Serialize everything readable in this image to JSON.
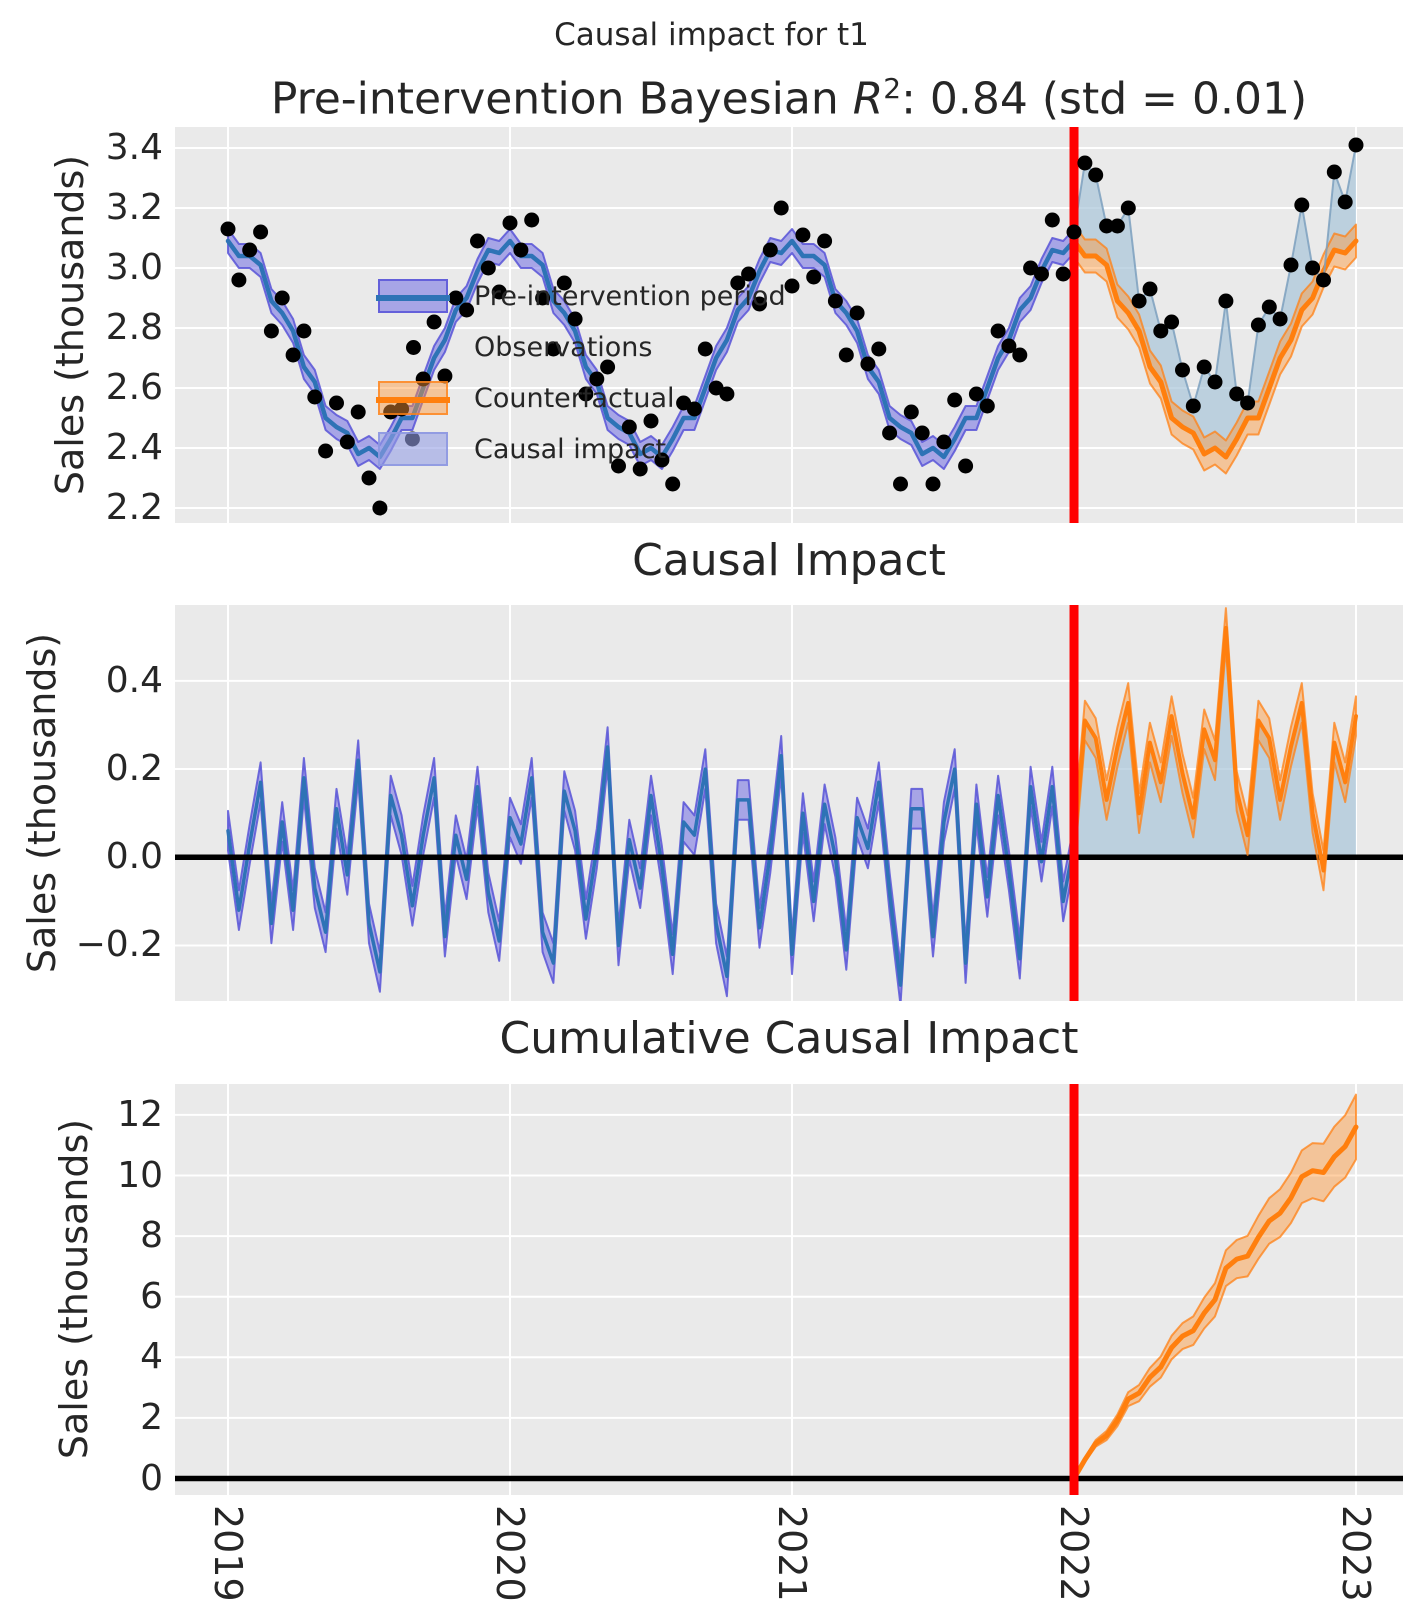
{
  "figure": {
    "suptitle": "Causal impact for t1",
    "background": "#ffffff",
    "panel_bg": "#eaeaea",
    "grid_color": "#ffffff",
    "text_color": "#262626"
  },
  "palette": {
    "fit_line": "#2e73b6",
    "fit_band_fill": "rgba(100,95,225,0.50)",
    "fit_band_edge": "rgba(88,84,215,0.85)",
    "counterfactual_line": "#ff7f0e",
    "counterfactual_band_fill": "rgba(255,150,55,0.45)",
    "counterfactual_band_edge": "rgba(255,128,20,0.75)",
    "causal_fill": "rgba(168,196,216,0.70)",
    "observation_dot": "#000000",
    "observation_line": "rgba(125,160,190,0.85)",
    "intervention_line": "#ff0000",
    "zero_line": "#000000",
    "legend_impact_patch_fill": "rgba(148,158,228,0.60)",
    "legend_impact_patch_edge": "rgba(140,150,225,0.85)"
  },
  "panels": {
    "top": {
      "title_prefix": "Pre-intervention Bayesian ",
      "title_r": "R",
      "title_sup": "2",
      "title_suffix": ": 0.84 (std = 0.01)",
      "ylabel": "Sales (thousands)",
      "legend": {
        "items": [
          {
            "label": "Pre-intervention period",
            "marker": "blue-band-with-line"
          },
          {
            "label": "Observations",
            "marker": "black-dot"
          },
          {
            "label": "Counterfactual",
            "marker": "orange-band-with-line"
          },
          {
            "label": "Causal impact",
            "marker": "light-blue-patch"
          }
        ]
      }
    },
    "middle": {
      "title": "Causal Impact",
      "ylabel": "Sales (thousands)"
    },
    "bottom": {
      "title": "Cumulative Causal Impact",
      "ylabel": "Sales (thousands)"
    }
  },
  "chart_data": [
    {
      "type": "line",
      "title": "Pre-intervention Bayesian R^2: 0.84 (std = 0.01)",
      "ylabel": "Sales (thousands)",
      "xlim": [
        2018.81,
        2023.17
      ],
      "ylim": [
        2.15,
        3.47
      ],
      "xticks": [
        2019,
        2020,
        2021,
        2022,
        2023
      ],
      "xtick_labels": [
        "2019",
        "2020",
        "2021",
        "2022",
        "2023"
      ],
      "yticks": [
        2.2,
        2.4,
        2.6,
        2.8,
        3.0,
        3.2,
        3.4
      ],
      "ytick_labels": [
        "2.2",
        "2.4",
        "2.6",
        "2.8",
        "3.0",
        "3.2",
        "3.4"
      ],
      "grid": true,
      "legend_position": "upper left",
      "intervention_x": 2022,
      "x_start": 2019.0,
      "x_step": 0.038462,
      "series": [
        {
          "name": "Observations",
          "style": "black-scatter",
          "values": [
            3.13,
            2.96,
            3.06,
            3.12,
            2.79,
            2.9,
            2.71,
            2.79,
            2.57,
            2.39,
            2.55,
            2.42,
            2.52,
            2.3,
            2.2,
            2.52,
            2.53,
            2.43,
            2.63,
            2.82,
            2.64,
            2.9,
            2.86,
            3.09,
            3.0,
            2.92,
            3.15,
            3.06,
            3.16,
            2.9,
            2.73,
            2.95,
            2.83,
            2.58,
            2.63,
            2.67,
            2.34,
            2.47,
            2.33,
            2.49,
            2.36,
            2.28,
            2.55,
            2.53,
            2.73,
            2.6,
            2.58,
            2.95,
            2.98,
            2.88,
            3.06,
            3.2,
            2.94,
            3.11,
            2.97,
            3.09,
            2.89,
            2.71,
            2.85,
            2.68,
            2.73,
            2.45,
            2.28,
            2.52,
            2.45,
            2.28,
            2.42,
            2.56,
            2.34,
            2.58,
            2.54,
            2.79,
            2.74,
            2.71,
            3.0,
            2.98,
            3.16,
            2.98,
            3.12,
            3.35,
            3.31,
            3.14,
            3.14,
            3.2,
            2.89,
            2.93,
            2.79,
            2.82,
            2.66,
            2.54,
            2.67,
            2.62,
            2.89,
            2.58,
            2.55,
            2.81,
            2.87,
            2.83,
            3.01,
            3.21,
            3.0,
            2.96,
            3.32,
            3.22,
            3.41
          ]
        },
        {
          "name": "Pre-intervention period",
          "style": "blue-line-with-band",
          "band_halfwidth": 0.04,
          "x_start": 2019.0,
          "values": [
            3.09,
            3.04,
            3.04,
            3.01,
            2.89,
            2.85,
            2.79,
            2.67,
            2.62,
            2.5,
            2.47,
            2.45,
            2.38,
            2.4,
            2.37,
            2.43,
            2.5,
            2.5,
            2.6,
            2.7,
            2.76,
            2.86,
            2.9,
            2.99,
            3.06,
            3.05,
            3.09,
            3.04,
            3.04,
            3.01,
            2.89,
            2.85,
            2.79,
            2.67,
            2.62,
            2.5,
            2.47,
            2.45,
            2.38,
            2.4,
            2.37,
            2.43,
            2.5,
            2.5,
            2.6,
            2.7,
            2.76,
            2.86,
            2.9,
            2.99,
            3.06,
            3.05,
            3.09,
            3.04,
            3.04,
            3.01,
            2.89,
            2.85,
            2.79,
            2.67,
            2.62,
            2.5,
            2.47,
            2.45,
            2.38,
            2.4,
            2.37,
            2.43,
            2.5,
            2.5,
            2.6,
            2.7,
            2.76,
            2.86,
            2.9,
            2.99,
            3.06,
            3.05,
            3.09
          ]
        },
        {
          "name": "Counterfactual",
          "style": "orange-line-with-band",
          "band_halfwidth": 0.055,
          "x_start": 2022.0,
          "values": [
            3.09,
            3.04,
            3.04,
            3.01,
            2.89,
            2.85,
            2.79,
            2.67,
            2.62,
            2.5,
            2.47,
            2.45,
            2.38,
            2.4,
            2.37,
            2.43,
            2.5,
            2.5,
            2.6,
            2.7,
            2.76,
            2.86,
            2.9,
            2.99,
            3.06,
            3.05,
            3.09
          ]
        },
        {
          "name": "Causal impact",
          "style": "light-blue-fill-between-observations-and-counterfactual",
          "x_start": 2022.0
        }
      ]
    },
    {
      "type": "line",
      "title": "Causal Impact",
      "ylabel": "Sales (thousands)",
      "xlim": [
        2018.81,
        2023.17
      ],
      "ylim": [
        -0.33,
        0.57
      ],
      "yticks": [
        -0.2,
        0.0,
        0.2,
        0.4
      ],
      "ytick_labels": [
        "−0.2",
        "0.0",
        "0.2",
        "0.4"
      ],
      "grid": true,
      "zero_line": true,
      "intervention_x": 2022,
      "x_start": 2019.0,
      "x_step": 0.038462,
      "series": [
        {
          "name": "pre-intervention impact",
          "style": "blue-line-with-purple-band",
          "band_halfwidth": 0.045,
          "x_start": 2019.0,
          "values": [
            0.06,
            -0.12,
            0.03,
            0.17,
            -0.15,
            0.08,
            -0.12,
            0.18,
            -0.07,
            -0.17,
            0.11,
            -0.04,
            0.22,
            -0.15,
            -0.26,
            0.14,
            0.05,
            -0.11,
            0.05,
            0.18,
            -0.18,
            0.05,
            -0.05,
            0.16,
            -0.08,
            -0.19,
            0.09,
            0.03,
            0.18,
            -0.17,
            -0.24,
            0.15,
            0.06,
            -0.14,
            0.02,
            0.25,
            -0.2,
            0.04,
            -0.07,
            0.14,
            -0.02,
            -0.22,
            0.08,
            0.05,
            0.2,
            -0.15,
            -0.27,
            0.13,
            0.13,
            -0.16,
            0.01,
            0.23,
            -0.22,
            0.1,
            -0.1,
            0.12,
            0.0,
            -0.21,
            0.09,
            0.02,
            0.17,
            -0.08,
            -0.29,
            0.11,
            0.11,
            -0.18,
            0.08,
            0.2,
            -0.24,
            0.12,
            -0.09,
            0.14,
            -0.03,
            -0.23,
            0.16,
            -0.01,
            0.16,
            -0.1,
            0.03
          ]
        },
        {
          "name": "post-intervention impact",
          "style": "orange-line-with-band-and-lightblue-fill-to-zero",
          "band_halfwidth": 0.045,
          "x_start": 2022.0,
          "values": [
            0.02,
            0.31,
            0.27,
            0.13,
            0.25,
            0.35,
            0.1,
            0.26,
            0.17,
            0.32,
            0.19,
            0.09,
            0.29,
            0.22,
            0.52,
            0.15,
            0.05,
            0.31,
            0.27,
            0.13,
            0.25,
            0.35,
            0.1,
            -0.03,
            0.26,
            0.17,
            0.32
          ]
        }
      ]
    },
    {
      "type": "area",
      "title": "Cumulative Causal Impact",
      "ylabel": "Sales (thousands)",
      "xlim": [
        2018.81,
        2023.17
      ],
      "ylim": [
        -0.55,
        13.0
      ],
      "yticks": [
        0,
        2,
        4,
        6,
        8,
        10,
        12
      ],
      "ytick_labels": [
        "0",
        "2",
        "4",
        "6",
        "8",
        "10",
        "12"
      ],
      "grid": true,
      "zero_line": true,
      "intervention_x": 2022,
      "x_start": 2022.0,
      "x_step": 0.038462,
      "series": [
        {
          "name": "cumulative causal impact",
          "style": "orange-line-with-growing-band",
          "band_growth_per_step": 0.04,
          "values": [
            0,
            0.62,
            1.16,
            1.42,
            1.92,
            2.62,
            2.82,
            3.34,
            3.68,
            4.32,
            4.7,
            4.88,
            5.46,
            5.9,
            6.94,
            7.24,
            7.34,
            7.96,
            8.5,
            8.76,
            9.26,
            9.96,
            10.16,
            10.1,
            10.62,
            10.96,
            11.6
          ]
        }
      ]
    }
  ]
}
